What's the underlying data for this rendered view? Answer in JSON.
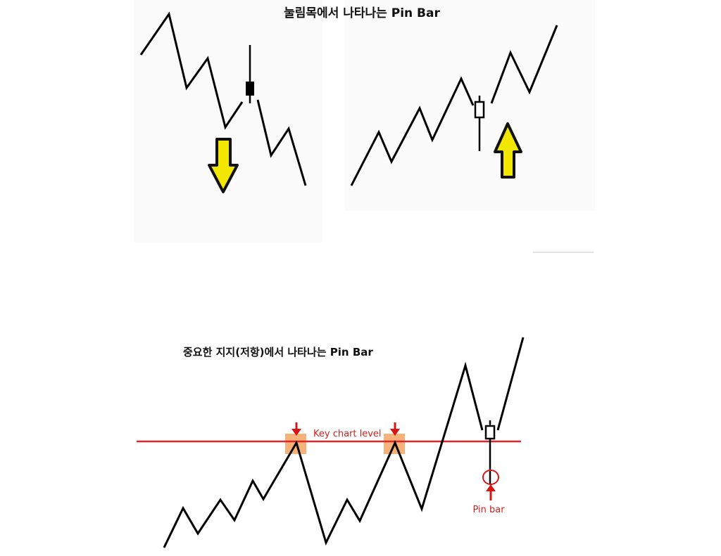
{
  "top_title": "눌림목에서 나타나는  Pin Bar",
  "bottom_title": "중요한 지지(저항)에서 나타나는 Pin Bar",
  "labels": {
    "key_level": "Key chart level",
    "pin_bar": "Pin bar"
  },
  "colors": {
    "price_line": "#000000",
    "level_line": "#e0262a",
    "touch_highlight": "#f4a460",
    "marker_red": "#d61515",
    "arrow_fill": "#f3e600",
    "arrow_stroke": "#111111"
  }
}
